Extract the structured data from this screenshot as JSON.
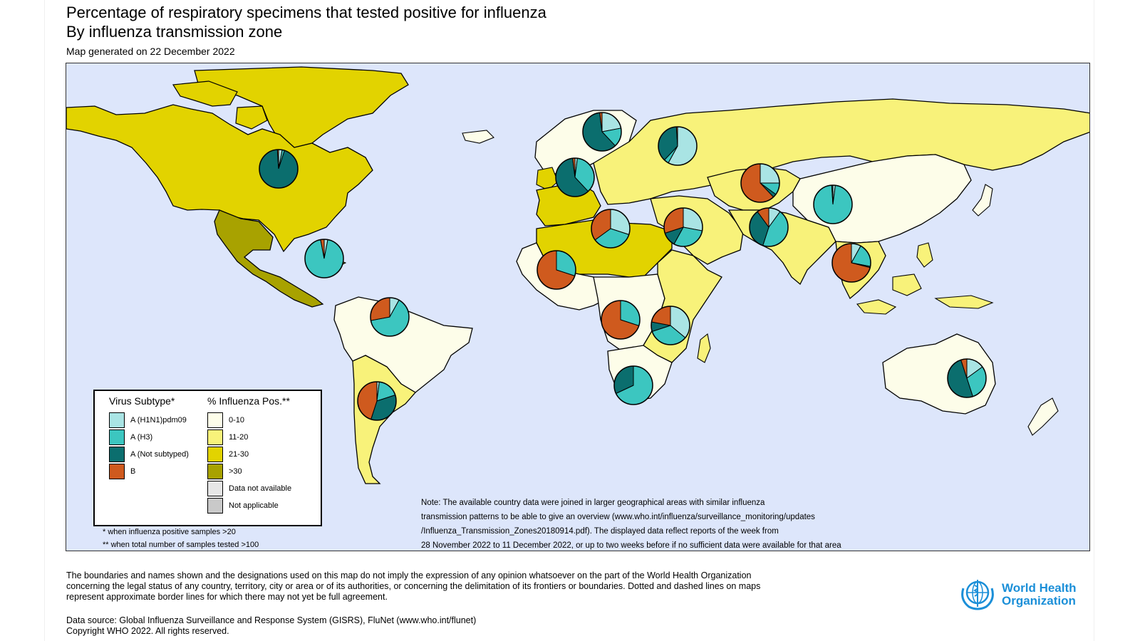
{
  "title": "Percentage of respiratory specimens that tested positive for influenza",
  "subtitle_zone": "By influenza transmission zone",
  "generated": "Map generated on 22 December 2022",
  "colors": {
    "ocean": "#dde6fb",
    "h1n1": "#a9e4e4",
    "h3": "#3cc6c0",
    "a_not_subtyped": "#0b6e6e",
    "b": "#cf5a1e",
    "pos_0_10": "#fdfde9",
    "pos_11_20": "#f8f27a",
    "pos_21_30": "#e2d300",
    "pos_30_plus": "#a8a200",
    "data_not_available": "#e6e6e6",
    "not_applicable": "#c9c9c9"
  },
  "legend": {
    "subtype_heading": "Virus Subtype*",
    "pos_heading": "% Influenza Pos.**",
    "subtypes": [
      {
        "label": "A (H1N1)pdm09",
        "color": "#a9e4e4"
      },
      {
        "label": "A (H3)",
        "color": "#3cc6c0"
      },
      {
        "label": "A (Not subtyped)",
        "color": "#0b6e6e"
      },
      {
        "label": "B",
        "color": "#cf5a1e"
      }
    ],
    "positivity": [
      {
        "label": "0-10",
        "color": "#fdfde9"
      },
      {
        "label": "11-20",
        "color": "#f8f27a"
      },
      {
        "label": "21-30",
        "color": "#e2d300"
      },
      {
        "label": ">30",
        "color": "#a8a200"
      },
      {
        "label": "Data not available",
        "color": "#e6e6e6"
      },
      {
        "label": "Not applicable",
        "color": "#c9c9c9"
      }
    ]
  },
  "footnotes": [
    "* when influenza positive samples >20",
    "** when total number of samples tested >100"
  ],
  "note_lines": [
    "Note: The available country data were joined in larger geographical areas with similar influenza",
    "transmission patterns to be able to give an overview (www.who.int/influenza/surveillance_monitoring/updates",
    "/Influenza_Transmission_Zones20180914.pdf). The displayed data reflect reports of the week from",
    "28 November 2022 to 11 December 2022, or up to two weeks before if no sufficient data were available for that area"
  ],
  "disclaimer_lines": [
    "The boundaries and names shown and the designations used on this map do not imply the expression of any opinion whatsoever on the part of the World Health Organization",
    "concerning the legal status of any country, territory, city or area or of its authorities, or concerning the delimitation of its frontiers or boundaries. Dotted and dashed lines on maps",
    "represent approximate border lines for which there may not yet be full agreement."
  ],
  "source_lines": [
    "Data source: Global Influenza Surveillance and Response System (GISRS), FluNet (www.who.int/flunet)",
    "Copyright WHO 2022. All rights reserved."
  ],
  "logo": {
    "line1": "World Health",
    "line2": "Organization"
  },
  "zones": [
    {
      "name": "North America",
      "positivity": "21-30"
    },
    {
      "name": "Central America Caribbean",
      "positivity": ">30"
    },
    {
      "name": "Tropical South America",
      "positivity": "0-10"
    },
    {
      "name": "Temperate South America",
      "positivity": "11-20"
    },
    {
      "name": "Northern Europe",
      "positivity": "0-10"
    },
    {
      "name": "South West Europe",
      "positivity": "21-30"
    },
    {
      "name": "Eastern Europe",
      "positivity": "11-20"
    },
    {
      "name": "Northern Africa",
      "positivity": "21-30"
    },
    {
      "name": "Western Africa",
      "positivity": "0-10"
    },
    {
      "name": "Middle Africa",
      "positivity": "0-10"
    },
    {
      "name": "Eastern Africa",
      "positivity": "11-20"
    },
    {
      "name": "Southern Africa",
      "positivity": "0-10"
    },
    {
      "name": "Western Asia",
      "positivity": "11-20"
    },
    {
      "name": "Central Asia",
      "positivity": "11-20"
    },
    {
      "name": "Southern Asia",
      "positivity": "11-20"
    },
    {
      "name": "Eastern Asia",
      "positivity": "0-10"
    },
    {
      "name": "South East Asia",
      "positivity": "11-20"
    },
    {
      "name": "Oceania Melanesia Polynesia",
      "positivity": "0-10"
    },
    {
      "name": "Greenland",
      "positivity": "21-30"
    }
  ],
  "pies": [
    {
      "zone": "North America",
      "h1n1": 3,
      "h3": 2,
      "a_not_subtyped": 94,
      "b": 1
    },
    {
      "zone": "Central America Caribbean",
      "h1n1": 3,
      "h3": 94,
      "a_not_subtyped": 0,
      "b": 3
    },
    {
      "zone": "Tropical South America",
      "h1n1": 8,
      "h3": 64,
      "a_not_subtyped": 0,
      "b": 28
    },
    {
      "zone": "Temperate South America",
      "h1n1": 2,
      "h3": 18,
      "a_not_subtyped": 35,
      "b": 45
    },
    {
      "zone": "Northern Europe",
      "h1n1": 22,
      "h3": 16,
      "a_not_subtyped": 60,
      "b": 2
    },
    {
      "zone": "South West Europe",
      "h1n1": 2,
      "h3": 36,
      "a_not_subtyped": 60,
      "b": 2
    },
    {
      "zone": "Eastern Europe",
      "h1n1": 58,
      "h3": 4,
      "a_not_subtyped": 37,
      "b": 1
    },
    {
      "zone": "Central Asia",
      "h1n1": 25,
      "h3": 10,
      "a_not_subtyped": 3,
      "b": 62
    },
    {
      "zone": "Northern Africa",
      "h1n1": 30,
      "h3": 35,
      "a_not_subtyped": 0,
      "b": 35
    },
    {
      "zone": "Western Asia",
      "h1n1": 28,
      "h3": 30,
      "a_not_subtyped": 12,
      "b": 30
    },
    {
      "zone": "Southern Asia",
      "h1n1": 10,
      "h3": 45,
      "a_not_subtyped": 35,
      "b": 10
    },
    {
      "zone": "Eastern Asia",
      "h1n1": 2,
      "h3": 97,
      "a_not_subtyped": 1,
      "b": 0
    },
    {
      "zone": "South East Asia",
      "h1n1": 8,
      "h3": 20,
      "a_not_subtyped": 1,
      "b": 71
    },
    {
      "zone": "Western Africa",
      "h1n1": 0,
      "h3": 30,
      "a_not_subtyped": 0,
      "b": 70
    },
    {
      "zone": "Middle Africa",
      "h1n1": 0,
      "h3": 30,
      "a_not_subtyped": 0,
      "b": 70
    },
    {
      "zone": "Eastern Africa",
      "h1n1": 36,
      "h3": 34,
      "a_not_subtyped": 8,
      "b": 22
    },
    {
      "zone": "Southern Africa",
      "h1n1": 0,
      "h3": 68,
      "a_not_subtyped": 32,
      "b": 0
    },
    {
      "zone": "Oceania Melanesia Polynesia",
      "h1n1": 15,
      "h3": 30,
      "a_not_subtyped": 50,
      "b": 5
    }
  ]
}
